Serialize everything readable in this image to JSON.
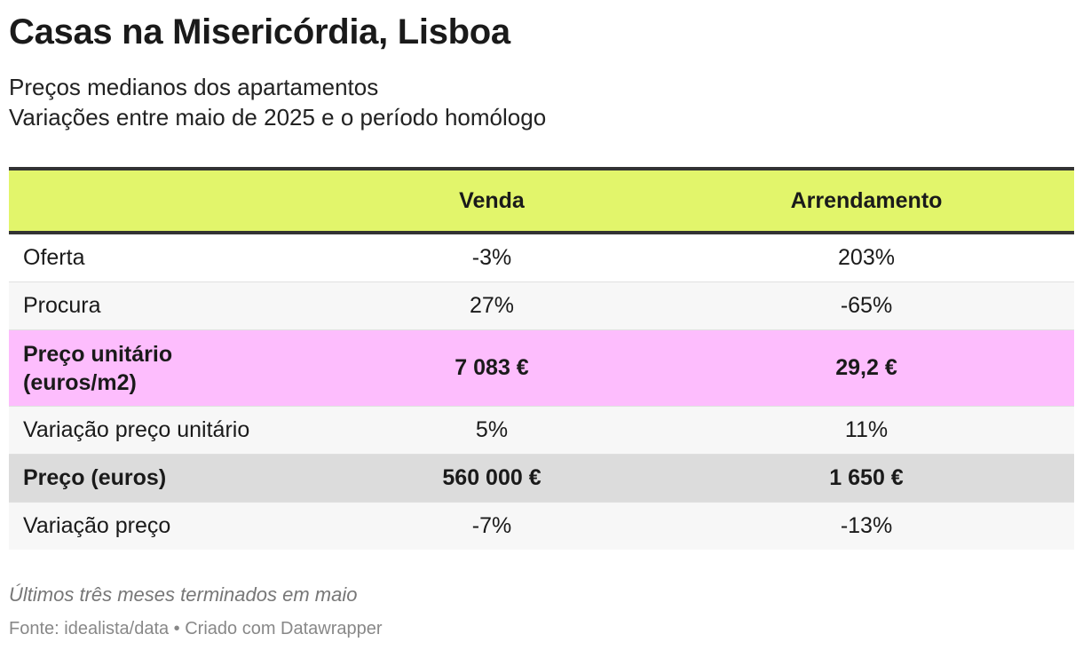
{
  "header": {
    "title": "Casas na Misericórdia, Lisboa",
    "subtitle": [
      "Preços medianos dos apartamentos",
      "Variações entre maio de 2025 e o período homólogo"
    ]
  },
  "table": {
    "columns": [
      "",
      "Venda",
      "Arrendamento"
    ],
    "rows": [
      [
        "Oferta",
        "-3%",
        "203%"
      ],
      [
        "Procura",
        "27%",
        "-65%"
      ],
      [
        "Preço unitário (euros/m2)",
        "7 083 €",
        "29,2 €"
      ],
      [
        "Variação preço unitário",
        "5%",
        "11%"
      ],
      [
        "Preço (euros)",
        "560 000 €",
        "1 650 €"
      ],
      [
        "Variação preço",
        "-7%",
        "-13%"
      ]
    ]
  },
  "footer": {
    "note": "Últimos três meses terminados em maio",
    "source": "Fonte: idealista/data • Criado com Datawrapper"
  }
}
